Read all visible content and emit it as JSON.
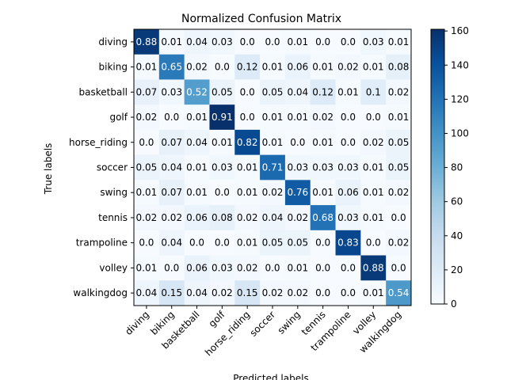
{
  "chart_data": {
    "type": "heatmap",
    "title": "Normalized Confusion Matrix",
    "xlabel": "Predicted labels",
    "ylabel": "True labels",
    "labels": [
      "diving",
      "biking",
      "basketball",
      "golf",
      "horse_riding",
      "soccer",
      "swing",
      "tennis",
      "trampoline",
      "volley",
      "walkingdog"
    ],
    "cell_values": [
      [
        "0.88",
        "0.01",
        "0.04",
        "0.03",
        "0.0",
        "0.0",
        "0.01",
        "0.0",
        "0.0",
        "0.03",
        "0.01"
      ],
      [
        "0.01",
        "0.65",
        "0.02",
        "0.0",
        "0.12",
        "0.01",
        "0.06",
        "0.01",
        "0.02",
        "0.01",
        "0.08"
      ],
      [
        "0.07",
        "0.03",
        "0.52",
        "0.05",
        "0.0",
        "0.05",
        "0.04",
        "0.12",
        "0.01",
        "0.1",
        "0.02"
      ],
      [
        "0.02",
        "0.0",
        "0.01",
        "0.91",
        "0.0",
        "0.01",
        "0.01",
        "0.02",
        "0.0",
        "0.0",
        "0.01"
      ],
      [
        "0.0",
        "0.07",
        "0.04",
        "0.01",
        "0.82",
        "0.01",
        "0.0",
        "0.01",
        "0.0",
        "0.02",
        "0.05"
      ],
      [
        "0.05",
        "0.04",
        "0.01",
        "0.03",
        "0.01",
        "0.71",
        "0.03",
        "0.03",
        "0.03",
        "0.01",
        "0.05"
      ],
      [
        "0.01",
        "0.07",
        "0.01",
        "0.0",
        "0.01",
        "0.02",
        "0.76",
        "0.01",
        "0.06",
        "0.01",
        "0.02"
      ],
      [
        "0.02",
        "0.02",
        "0.06",
        "0.08",
        "0.02",
        "0.04",
        "0.02",
        "0.68",
        "0.03",
        "0.01",
        "0.0"
      ],
      [
        "0.0",
        "0.04",
        "0.0",
        "0.0",
        "0.01",
        "0.05",
        "0.05",
        "0.0",
        "0.83",
        "0.0",
        "0.02"
      ],
      [
        "0.01",
        "0.0",
        "0.06",
        "0.03",
        "0.02",
        "0.0",
        "0.01",
        "0.0",
        "0.0",
        "0.88",
        "0.0"
      ],
      [
        "0.04",
        "0.15",
        "0.04",
        "0.02",
        "0.15",
        "0.02",
        "0.02",
        "0.0",
        "0.0",
        "0.01",
        "0.54"
      ]
    ],
    "colorbar": {
      "min": 0,
      "max": 161,
      "ticks": [
        0,
        20,
        40,
        60,
        80,
        100,
        120,
        140,
        160
      ],
      "colormap": "Blues"
    },
    "colors": {
      "light": "#f7fbff",
      "dark": "#08306b",
      "grid": "#000000"
    }
  }
}
